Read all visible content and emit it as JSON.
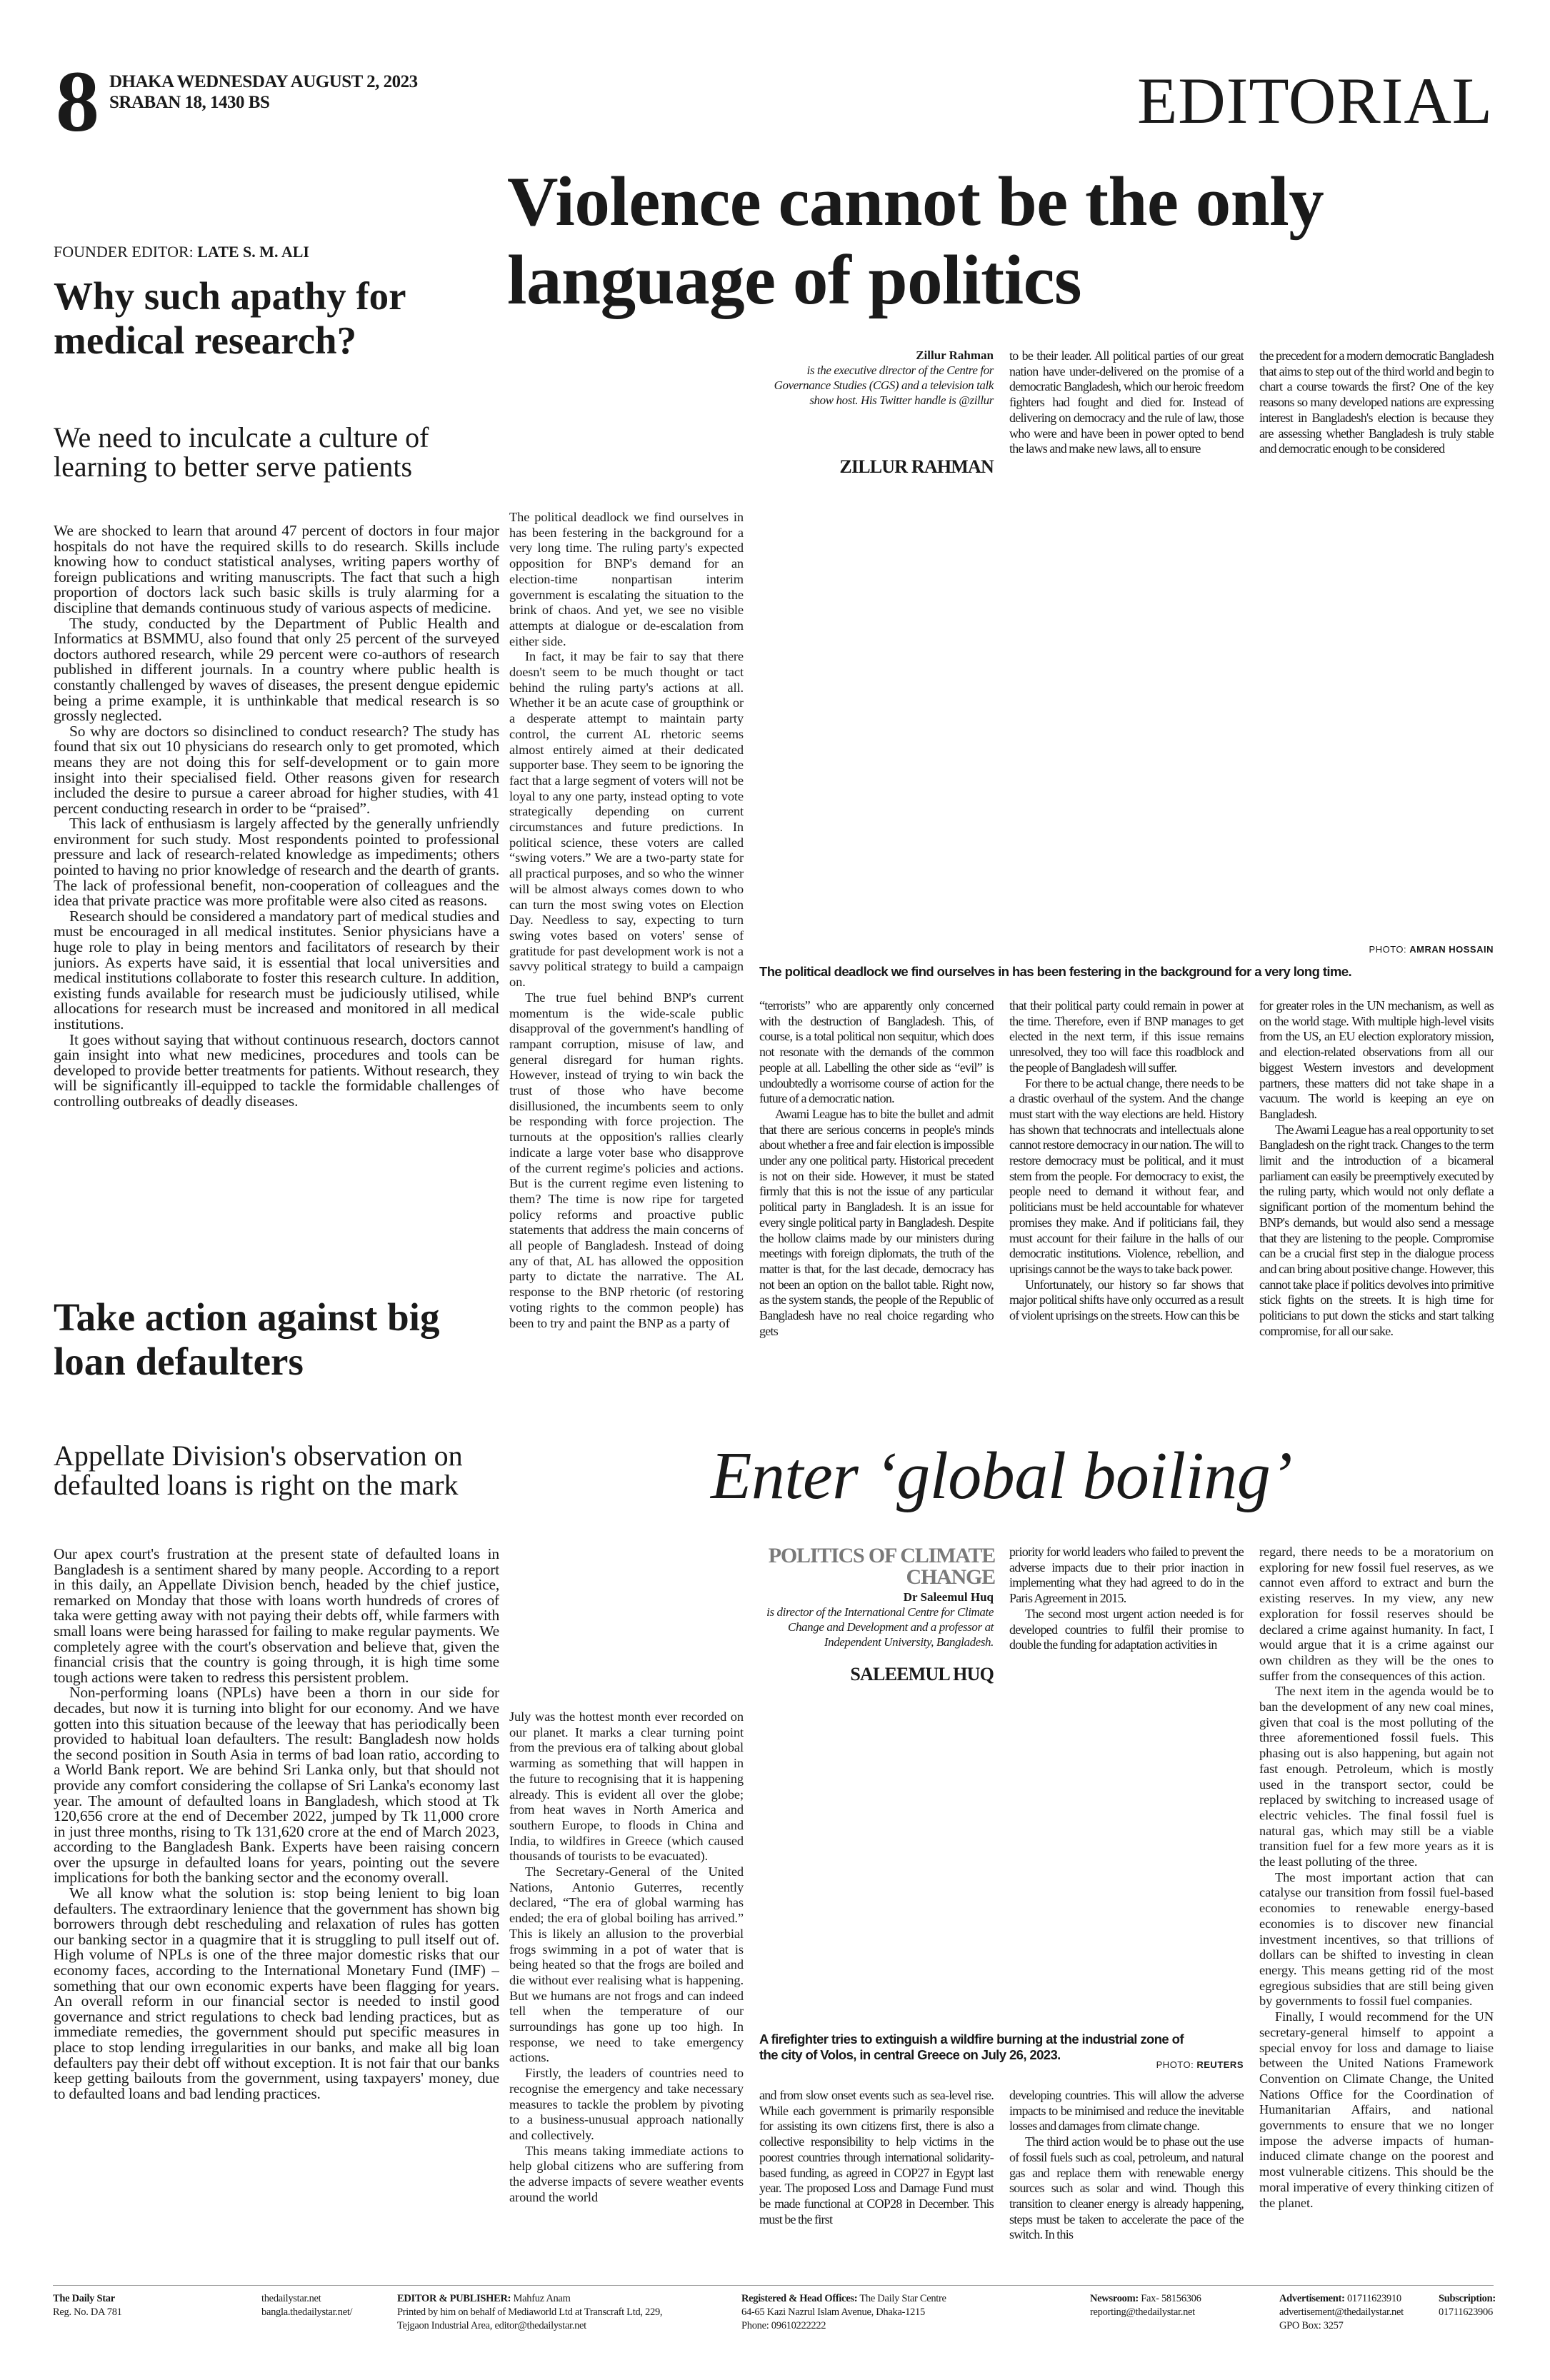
{
  "masthead": {
    "page_number": "8",
    "date_line_1": "DHAKA WEDNESDAY AUGUST 2, 2023",
    "date_line_2": "SRABAN 18, 1430 BS",
    "section": "EDITORIAL"
  },
  "founder": {
    "label": "FOUNDER EDITOR:",
    "name": "LATE S. M. ALI"
  },
  "editorial_1": {
    "headline": "Why such apathy for medical research?",
    "subhead": "We need to inculcate a culture of learning to better serve patients",
    "paragraphs": [
      "We are shocked to learn that around 47 percent of doctors in four major hospitals do not have the required skills to do research. Skills include knowing how to conduct statistical analyses, writing papers worthy of foreign publications and writing manuscripts. The fact that such a high proportion of doctors lack such basic skills is truly alarming for a discipline that demands continuous study of various aspects of medicine.",
      "The study, conducted by the Department of Public Health and Informatics at BSMMU, also found that only 25 percent of the surveyed doctors authored research, while 29 percent were co-authors of research published in different journals. In a country where public health is constantly challenged by waves of diseases, the present dengue epidemic being a prime example, it is unthinkable that medical research is so grossly neglected.",
      "So why are doctors so disinclined to conduct research? The study has found that six out 10 physicians do research only to get promoted, which means they are not doing this for self-development or to gain more insight into their specialised field. Other reasons given for research included the desire to pursue a career abroad for higher studies, with 41 percent conducting research in order to be “praised”.",
      "This lack of enthusiasm is largely affected by the generally unfriendly environment for such study. Most respondents pointed to professional pressure and lack of research-related knowledge as impediments; others pointed to having no prior knowledge of research and the dearth of grants. The lack of professional benefit, non-cooperation of colleagues and the idea that private practice was more profitable were also cited as reasons.",
      "Research should be considered a mandatory part of medical studies and must be encouraged in all medical institutes. Senior physicians have a huge role to play in being mentors and facilitators of research by their juniors. As experts have said, it is essential that local universities and medical institutions collaborate to foster this research culture. In addition, existing funds available for research must be judiciously utilised, while allocations for research must be increased and monitored in all medical institutions.",
      "It goes without saying that without continuous research, doctors cannot gain insight into what new medicines, procedures and tools can be developed to provide better treatments for patients. Without research, they will be significantly ill-equipped to tackle the formidable challenges of controlling outbreaks of deadly diseases."
    ]
  },
  "editorial_2": {
    "headline": "Take action against big loan defaulters",
    "subhead": "Appellate Division's observation on defaulted loans is right on the mark",
    "paragraphs": [
      "Our apex court's frustration at the present state of defaulted loans in Bangladesh is a sentiment shared by many people. According to a report in this daily, an Appellate Division bench, headed by the chief justice, remarked on Monday that those with loans worth hundreds of crores of taka were getting away with not paying their debts off, while farmers with small loans were being harassed for failing to make regular payments. We completely agree with the court's observation and believe that, given the financial crisis that the country is going through, it is high time some tough actions were taken to redress this persistent problem.",
      "Non-performing loans (NPLs) have been a thorn in our side for decades, but now it is turning into blight for our economy. And we have gotten into this situation because of the leeway that has periodically been provided to habitual loan defaulters. The result: Bangladesh now holds the second position in South Asia in terms of bad loan ratio, according to a World Bank report. We are behind Sri Lanka only, but that should not provide any comfort considering the collapse of Sri Lanka's economy last year. The amount of defaulted loans in Bangladesh, which stood at Tk 120,656 crore at the end of December 2022, jumped by Tk 11,000 crore in just three months, rising to Tk 131,620 crore at the end of March 2023, according to the Bangladesh Bank. Experts have been raising concern over the upsurge in defaulted loans for years, pointing out the severe implications for both the banking sector and the economy overall.",
      "We all know what the solution is: stop being lenient to big loan defaulters. The extraordinary lenience that the government has shown big borrowers through debt rescheduling and relaxation of rules has gotten our banking sector in a quagmire that it is struggling to pull itself out of. High volume of NPLs is one of the three major domestic risks that our economy faces, according to the International Monetary Fund (IMF) – something that our own economic experts have been flagging for years. An overall reform in our financial sector is needed to instil good governance and strict regulations to check bad lending practices, but as immediate remedies, the government should put specific measures in place to stop lending irregularities in our banks, and make all big loan defaulters pay their debt off without exception. It is not fair that our banks keep getting bailouts from the government, using taxpayers' money, due to defaulted loans and bad lending practices."
    ]
  },
  "article_1": {
    "headline": "Violence cannot be the only language of politics",
    "author_name": "Zillur Rahman",
    "author_bio": "is the executive director of the Centre for Governance Studies (CGS) and a television talk show host. His Twitter handle is @zillur",
    "author_caps": "ZILLUR RAHMAN",
    "photo_credit_label": "PHOTO:",
    "photo_credit": "AMRAN HOSSAIN",
    "photo_caption": "The political deadlock we find ourselves in has been festering in the background for a very long time.",
    "col1": [
      "The political deadlock we find ourselves in has been festering in the background for a very long time. The ruling party's expected opposition for BNP's demand for an election-time nonpartisan interim government is escalating the situation to the brink of chaos. And yet, we see no visible attempts at dialogue or de-escalation from either side.",
      "In fact, it may be fair to say that there doesn't seem to be much thought or tact behind the ruling party's actions at all. Whether it be an acute case of groupthink or a desperate attempt to maintain party control, the current AL rhetoric seems almost entirely aimed at their dedicated supporter base. They seem to be ignoring the fact that a large segment of voters will not be loyal to any one party, instead opting to vote strategically depending on current circumstances and future predictions. In political science, these voters are called “swing voters.” We are a two-party state for all practical purposes, and so who the winner will be almost always comes down to who can turn the most swing votes on Election Day. Needless to say, expecting to turn swing votes based on voters' sense of gratitude for past development work is not a savvy political strategy to build a campaign on.",
      "The true fuel behind BNP's current momentum is the wide-scale public disapproval of the government's handling of rampant corruption, misuse of law, and general disregard for human rights. However, instead of trying to win back the trust of those who have become disillusioned, the incumbents seem to only be responding with force projection. The turnouts at the opposition's rallies clearly indicate a large voter base who disapprove of the current regime's policies and actions. But is the current regime even listening to them? The time is now ripe for targeted policy reforms and proactive public statements that address the main concerns of all people of Bangladesh. Instead of doing any of that, AL has allowed the opposition party to dictate the narrative. The AL response to the BNP rhetoric (of restoring voting rights to the common people) has been to try and paint the BNP as a party of"
    ],
    "col2": [
      "“terrorists” who are apparently only concerned with the destruction of Bangladesh. This, of course, is a total political non sequitur, which does not resonate with the demands of the common people at all. Labelling the other side as “evil” is undoubtedly a worrisome course of action for the future of a democratic nation.",
      "Awami League has to bite the bullet and admit that there are serious concerns in people's minds about whether a free and fair election is impossible under any one political party. Historical precedent is not on their side. However, it must be stated firmly that this is not the issue of any particular political party in Bangladesh. It is an issue for every single political party in Bangladesh. Despite the hollow claims made by our ministers during meetings with foreign diplomats, the truth of the matter is that, for the last decade, democracy has not been an option on the ballot table. Right now, as the system stands, the people of the Republic of Bangladesh have no real choice regarding who gets"
    ],
    "col3_top": [
      "to be their leader. All political parties of our great nation have under-delivered on the promise of a democratic Bangladesh, which our heroic freedom fighters had fought and died for. Instead of delivering on democracy and the rule of law, those who were and have been in power opted to bend the laws and make new laws, all to ensure"
    ],
    "col3": [
      "that their political party could remain in power at the time. Therefore, even if BNP manages to get elected in the next term, if this issue remains unresolved, they too will face this roadblock and the people of Bangladesh will suffer.",
      "For there to be actual change, there needs to be a drastic overhaul of the system. And the change must start with the way elections are held. History has shown that technocrats and intellectuals alone cannot restore democracy in our nation. The will to restore democracy must be political, and it must stem from the people. For democracy to exist, the people need to demand it without fear, and politicians must be held accountable for whatever promises they make. And if politicians fail, they must account for their failure in the halls of our democratic institutions. Violence, rebellion, and uprisings cannot be the ways to take back power.",
      "Unfortunately, our history so far shows that major political shifts have only occurred as a result of violent uprisings on the streets. How can this be"
    ],
    "col4_top": [
      "the precedent for a modern democratic Bangladesh that aims to step out of the third world and begin to chart a course towards the first? One of the key reasons so many developed nations are expressing interest in Bangladesh's election is because they are assessing whether Bangladesh is truly stable and democratic enough to be considered"
    ],
    "col4": [
      "for greater roles in the UN mechanism, as well as on the world stage. With multiple high-level visits from the US, an EU election exploratory mission, and election-related observations from all our biggest Western investors and development partners, these matters did not take shape in a vacuum. The world is keeping an eye on Bangladesh.",
      "The Awami League has a real opportunity to set Bangladesh on the right track. Changes to the term limit and the introduction of a bicameral parliament can easily be preemptively executed by the ruling party, which would not only deflate a significant portion of the momentum behind the BNP's demands, but would also send a message that they are listening to the people. Compromise can be a crucial first step in the dialogue process and can bring about positive change. However, this cannot take place if politics devolves into primitive stick fights on the streets. It is high time for politicians to put down the sticks and start talking compromise, for all our sake."
    ]
  },
  "article_2": {
    "headline": "Enter ‘global boiling’",
    "kicker": "POLITICS OF CLIMATE CHANGE",
    "author_name": "Dr Saleemul Huq",
    "author_bio": "is director of the International Centre for Climate Change and Development and a professor at Independent University, Bangladesh.",
    "author_caps": "SALEEMUL HUQ",
    "photo_caption": "A firefighter tries to extinguish a wildfire burning at the industrial zone of the city of Volos, in central Greece on July 26, 2023.",
    "photo_credit_label": "PHOTO:",
    "photo_credit": "REUTERS",
    "col1": [
      "July was the hottest month ever recorded on our planet. It marks a clear turning point from the previous era of talking about global warming as something that will happen in the future to recognising that it is happening already. This is evident all over the globe; from heat waves in North America and southern Europe, to floods in China and India, to wildfires in Greece (which caused thousands of tourists to be evacuated).",
      "The Secretary-General of the United Nations, Antonio Guterres, recently declared, “The era of global warming has ended; the era of global boiling has arrived.” This is likely an allusion to the proverbial frogs swimming in a pot of water that is being heated so that the frogs are boiled and die without ever realising what is happening. But we humans are not frogs and can indeed tell when the temperature of our surroundings has gone up too high. In response, we need to take emergency actions.",
      "Firstly, the leaders of countries need to recognise the emergency and take necessary measures to tackle the problem by pivoting to a business-unusual approach nationally and collectively.",
      "This means taking immediate actions to help global citizens who are suffering from the adverse impacts of severe weather events around the world"
    ],
    "col2": [
      "and from slow onset events such as sea-level rise. While each government is primarily responsible for assisting its own citizens first, there is also a collective responsibility to help victims in the poorest countries through international solidarity-based funding, as agreed in COP27 in Egypt last year. The proposed Loss and Damage Fund must be made functional at COP28 in December. This must be the first"
    ],
    "col3_top": [
      "priority for world leaders who failed to prevent the adverse impacts due to their prior inaction in implementing what they had agreed to do in the Paris Agreement in 2015.",
      "The second most urgent action needed is for developed countries to fulfil their promise to double the funding for adaptation activities in"
    ],
    "col3": [
      "developing countries. This will allow the adverse impacts to be minimised and reduce the inevitable losses and damages from climate change.",
      "The third action would be to phase out the use of fossil fuels such as coal, petroleum, and natural gas and replace them with renewable energy sources such as solar and wind. Though this transition to cleaner energy is already happening, steps must be taken to accelerate the pace of the switch. In this"
    ],
    "col4": [
      "regard, there needs to be a moratorium on exploring for new fossil fuel reserves, as we cannot even afford to extract and burn the existing reserves. In my view, any new exploration for fossil reserves should be declared a crime against humanity. In fact, I would argue that it is a crime against our own children as they will be the ones to suffer from the consequences of this action.",
      "The next item in the agenda would be to ban the development of any new coal mines, given that coal is the most polluting of the three aforementioned fossil fuels. This phasing out is also happening, but again not fast enough. Petroleum, which is mostly used in the transport sector, could be replaced by switching to increased usage of electric vehicles. The final fossil fuel is natural gas, which may still be a viable transition fuel for a few more years as it is the least polluting of the three.",
      "The most important action that can catalyse our transition from fossil fuel-based economies to renewable energy-based economies is to discover new financial investment incentives, so that trillions of dollars can be shifted to investing in clean energy. This means getting rid of the most egregious subsidies that are still being given by governments to fossil fuel companies.",
      "Finally, I would recommend for the UN secretary-general himself to appoint a special envoy for loss and damage to liaise between the United Nations Framework Convention on Climate Change, the United Nations Office for the Coordination of Humanitarian Affairs, and national governments to ensure that we no longer impose the adverse impacts of human-induced climate change on the poorest and most vulnerable citizens. This should be the moral imperative of every thinking citizen of the planet."
    ]
  },
  "footer": {
    "c1_label": "The Daily Star",
    "c1_l2": "Reg. No. DA 781",
    "c2_l1": "thedailystar.net",
    "c2_l2": "bangla.thedailystar.net/",
    "c3_label": "EDITOR & PUBLISHER:",
    "c3_value": "Mahfuz Anam",
    "c3_l2": "Printed by him on behalf of Mediaworld Ltd at Transcraft Ltd, 229,",
    "c3_l3": "Tejgaon Industrial Area, editor@thedailystar.net",
    "c4_label": "Registered & Head Offices:",
    "c4_value": "The Daily Star Centre",
    "c4_l2": "64-65 Kazi Nazrul Islam Avenue, Dhaka-1215",
    "c4_l3": "Phone: 09610222222",
    "c5_label": "Newsroom:",
    "c5_value": "Fax- 58156306",
    "c5_l2": "reporting@thedailystar.net",
    "c6_label": "Advertisement:",
    "c6_value": "01711623910",
    "c6_l2": "advertisement@thedailystar.net",
    "c6_l3": "GPO Box: 3257",
    "c7_label": "Subscription:",
    "c7_l2": "01711623906"
  }
}
